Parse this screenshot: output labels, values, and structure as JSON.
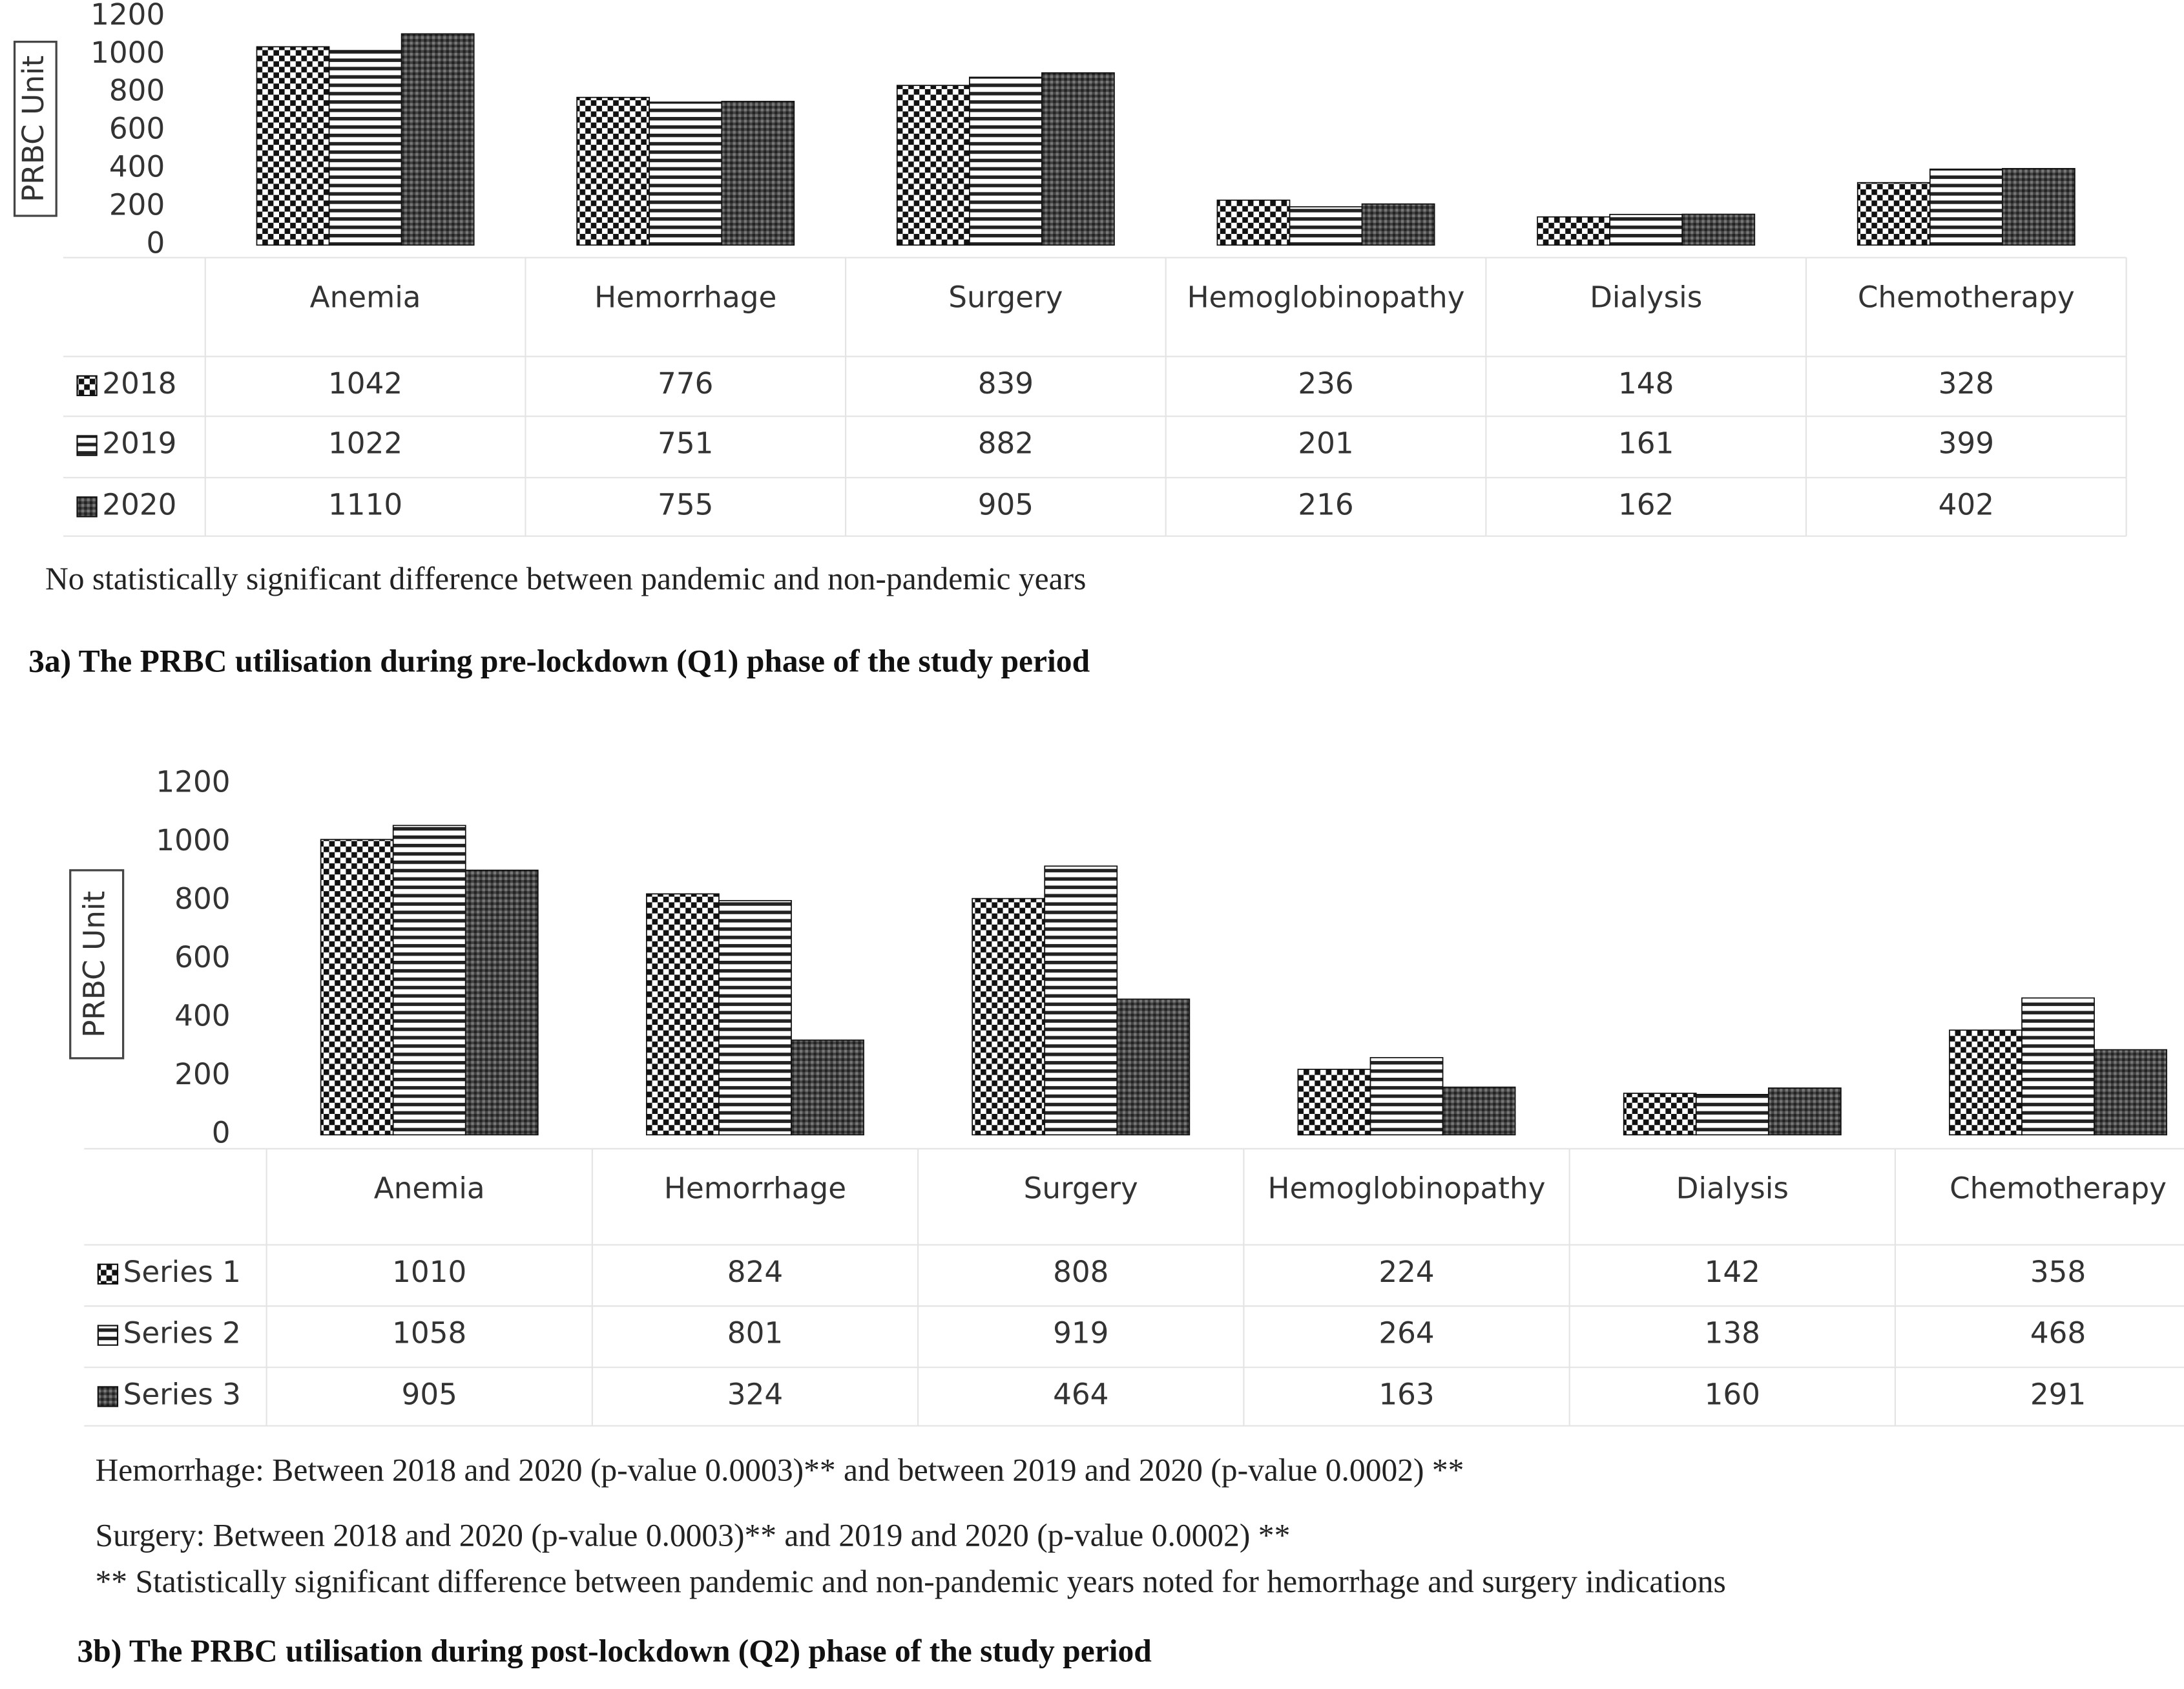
{
  "chart_data": [
    {
      "type": "bar",
      "y_label": "PRBC Unit",
      "categories": [
        "Anemia",
        "Hemorrhage",
        "Surgery",
        "Hemoglobinopathy",
        "Dialysis",
        "Chemotherapy"
      ],
      "series": [
        {
          "name": "2018",
          "color": "#111111",
          "pattern": "checker",
          "values": [
            1042,
            776,
            839,
            236,
            148,
            328
          ]
        },
        {
          "name": "2019",
          "color": "#111111",
          "pattern": "stripes",
          "values": [
            1022,
            751,
            882,
            201,
            161,
            399
          ]
        },
        {
          "name": "2020",
          "color": "#111111",
          "pattern": "dense",
          "values": [
            1110,
            755,
            905,
            216,
            162,
            402
          ]
        }
      ],
      "ylim": [
        0,
        1200
      ],
      "yticks": [
        0,
        200,
        400,
        600,
        800,
        1000,
        1200
      ],
      "notes": [
        "No statistically significant difference between pandemic and non-pandemic years"
      ],
      "caption": "3a) The PRBC utilisation during pre-lockdown (Q1) phase of the study period"
    },
    {
      "type": "bar",
      "y_label": "PRBC Unit",
      "categories": [
        "Anemia",
        "Hemorrhage",
        "Surgery",
        "Hemoglobinopathy",
        "Dialysis",
        "Chemotherapy"
      ],
      "series": [
        {
          "name": "Series 1",
          "color": "#111111",
          "pattern": "checker",
          "values": [
            1010,
            824,
            808,
            224,
            142,
            358
          ]
        },
        {
          "name": "Series 2",
          "color": "#111111",
          "pattern": "stripes",
          "values": [
            1058,
            801,
            919,
            264,
            138,
            468
          ]
        },
        {
          "name": "Series 3",
          "color": "#111111",
          "pattern": "dense",
          "values": [
            905,
            324,
            464,
            163,
            160,
            291
          ]
        }
      ],
      "ylim": [
        0,
        1200
      ],
      "yticks": [
        0,
        200,
        400,
        600,
        800,
        1000,
        1200
      ],
      "notes": [
        "Hemorrhage: Between 2018 and 2020 (p-value 0.0003)** and between 2019 and 2020 (p-value 0.0002) **",
        "Surgery: Between 2018 and 2020 (p-value 0.0003)** and 2019 and 2020 (p-value 0.0002) **",
        "** Statistically significant difference between pandemic and non-pandemic years noted for hemorrhage and surgery indications"
      ],
      "caption": "3b) The PRBC utilisation during post-lockdown (Q2) phase of the study period"
    }
  ]
}
